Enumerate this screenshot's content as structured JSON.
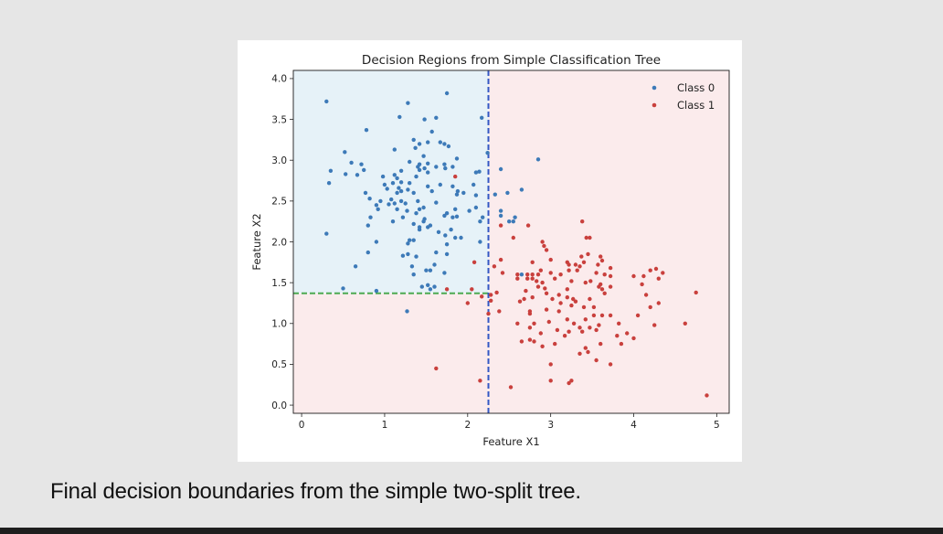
{
  "caption": "Final decision boundaries from the simple two-split tree.",
  "colors": {
    "class0": "#3d7ab8",
    "class1": "#c9403d",
    "region0": "#e6f2f8",
    "region1": "#fbebec",
    "split_x1": "#3358c4",
    "split_x2": "#4caa53"
  },
  "chart_data": {
    "type": "scatter",
    "title": "Decision Regions from Simple Classification Tree",
    "xlabel": "Feature X1",
    "ylabel": "Feature X2",
    "xlim": [
      -0.1,
      5.15
    ],
    "ylim": [
      -0.1,
      4.1
    ],
    "xticks": [
      "0",
      "1",
      "2",
      "3",
      "4",
      "5"
    ],
    "xtick_values": [
      0,
      1,
      2,
      3,
      4,
      5
    ],
    "yticks": [
      "0.0",
      "0.5",
      "1.0",
      "1.5",
      "2.0",
      "2.5",
      "3.0",
      "3.5",
      "4.0"
    ],
    "ytick_values": [
      0,
      0.5,
      1,
      1.5,
      2,
      2.5,
      3,
      3.5,
      4
    ],
    "grid": false,
    "legend_position": "top-right",
    "splits": [
      {
        "feature": "X1",
        "threshold": 2.25,
        "style": "dashed"
      },
      {
        "feature": "X2",
        "threshold": 1.37,
        "applies_when": "X1 <= 2.25",
        "style": "dashed"
      }
    ],
    "regions": [
      {
        "label": "Class 0",
        "x1": [
          -0.1,
          2.25
        ],
        "x2": [
          1.37,
          4.1
        ]
      },
      {
        "label": "Class 1",
        "x1": [
          -0.1,
          2.25
        ],
        "x2": [
          -0.1,
          1.37
        ]
      },
      {
        "label": "Class 1",
        "x1": [
          2.25,
          5.15
        ],
        "x2": [
          -0.1,
          4.1
        ]
      }
    ],
    "series": [
      {
        "name": "Class 0",
        "points": [
          [
            0.3,
            3.72
          ],
          [
            1.28,
            3.7
          ],
          [
            1.75,
            3.82
          ],
          [
            1.18,
            3.53
          ],
          [
            1.48,
            3.5
          ],
          [
            1.62,
            3.52
          ],
          [
            2.17,
            3.52
          ],
          [
            0.78,
            3.37
          ],
          [
            1.57,
            3.35
          ],
          [
            1.35,
            3.25
          ],
          [
            1.42,
            3.2
          ],
          [
            1.52,
            3.22
          ],
          [
            1.67,
            3.22
          ],
          [
            1.72,
            3.2
          ],
          [
            1.77,
            3.17
          ],
          [
            1.37,
            3.15
          ],
          [
            1.12,
            3.13
          ],
          [
            0.52,
            3.1
          ],
          [
            1.47,
            3.05
          ],
          [
            1.87,
            3.02
          ],
          [
            2.24,
            3.09
          ],
          [
            2.85,
            3.01
          ],
          [
            0.6,
            2.97
          ],
          [
            0.72,
            2.95
          ],
          [
            1.3,
            2.98
          ],
          [
            1.42,
            2.95
          ],
          [
            1.52,
            2.96
          ],
          [
            1.48,
            2.9
          ],
          [
            1.62,
            2.92
          ],
          [
            1.42,
            2.88
          ],
          [
            1.4,
            2.92
          ],
          [
            1.72,
            2.95
          ],
          [
            1.73,
            2.9
          ],
          [
            1.82,
            2.92
          ],
          [
            0.75,
            2.88
          ],
          [
            0.67,
            2.82
          ],
          [
            0.35,
            2.87
          ],
          [
            0.53,
            2.83
          ],
          [
            1.12,
            2.82
          ],
          [
            1.2,
            2.87
          ],
          [
            1.15,
            2.78
          ],
          [
            1.52,
            2.85
          ],
          [
            1.38,
            2.8
          ],
          [
            2.1,
            2.85
          ],
          [
            2.14,
            2.86
          ],
          [
            2.4,
            2.89
          ],
          [
            0.98,
            2.8
          ],
          [
            1.1,
            2.72
          ],
          [
            1.2,
            2.73
          ],
          [
            1.3,
            2.72
          ],
          [
            0.33,
            2.72
          ],
          [
            1.0,
            2.7
          ],
          [
            1.52,
            2.68
          ],
          [
            1.67,
            2.7
          ],
          [
            1.03,
            2.65
          ],
          [
            1.57,
            2.62
          ],
          [
            1.17,
            2.66
          ],
          [
            1.28,
            2.64
          ],
          [
            1.82,
            2.68
          ],
          [
            1.88,
            2.62
          ],
          [
            2.07,
            2.7
          ],
          [
            0.77,
            2.6
          ],
          [
            1.15,
            2.6
          ],
          [
            1.2,
            2.62
          ],
          [
            1.35,
            2.6
          ],
          [
            1.87,
            2.58
          ],
          [
            1.95,
            2.6
          ],
          [
            2.1,
            2.57
          ],
          [
            2.33,
            2.58
          ],
          [
            2.48,
            2.6
          ],
          [
            2.65,
            2.64
          ],
          [
            0.82,
            2.53
          ],
          [
            0.95,
            2.5
          ],
          [
            1.08,
            2.52
          ],
          [
            1.2,
            2.5
          ],
          [
            1.05,
            2.46
          ],
          [
            1.12,
            2.47
          ],
          [
            1.25,
            2.47
          ],
          [
            1.4,
            2.5
          ],
          [
            1.47,
            2.42
          ],
          [
            1.62,
            2.48
          ],
          [
            0.9,
            2.45
          ],
          [
            0.92,
            2.4
          ],
          [
            1.15,
            2.4
          ],
          [
            1.27,
            2.38
          ],
          [
            1.42,
            2.4
          ],
          [
            1.38,
            2.35
          ],
          [
            1.85,
            2.4
          ],
          [
            1.75,
            2.35
          ],
          [
            2.02,
            2.38
          ],
          [
            2.1,
            2.42
          ],
          [
            2.4,
            2.38
          ],
          [
            1.22,
            2.3
          ],
          [
            0.83,
            2.3
          ],
          [
            1.48,
            2.28
          ],
          [
            1.72,
            2.32
          ],
          [
            1.82,
            2.3
          ],
          [
            1.87,
            2.31
          ],
          [
            2.18,
            2.3
          ],
          [
            2.4,
            2.32
          ],
          [
            2.57,
            2.3
          ],
          [
            1.47,
            2.25
          ],
          [
            1.1,
            2.25
          ],
          [
            1.35,
            2.22
          ],
          [
            1.55,
            2.2
          ],
          [
            2.15,
            2.25
          ],
          [
            2.5,
            2.25
          ],
          [
            2.55,
            2.25
          ],
          [
            0.8,
            2.2
          ],
          [
            1.42,
            2.18
          ],
          [
            1.42,
            2.15
          ],
          [
            1.52,
            2.18
          ],
          [
            1.8,
            2.15
          ],
          [
            0.3,
            2.1
          ],
          [
            1.65,
            2.12
          ],
          [
            1.73,
            2.08
          ],
          [
            1.85,
            2.05
          ],
          [
            1.92,
            2.05
          ],
          [
            0.9,
            2.0
          ],
          [
            1.3,
            2.02
          ],
          [
            1.35,
            2.02
          ],
          [
            1.28,
            1.98
          ],
          [
            1.75,
            1.97
          ],
          [
            2.15,
            2.0
          ],
          [
            0.8,
            1.87
          ],
          [
            1.22,
            1.83
          ],
          [
            1.28,
            1.85
          ],
          [
            1.38,
            1.82
          ],
          [
            1.62,
            1.87
          ],
          [
            1.75,
            1.85
          ],
          [
            0.65,
            1.7
          ],
          [
            1.33,
            1.7
          ],
          [
            1.5,
            1.65
          ],
          [
            1.55,
            1.65
          ],
          [
            1.6,
            1.72
          ],
          [
            1.72,
            1.62
          ],
          [
            1.35,
            1.6
          ],
          [
            1.45,
            1.45
          ],
          [
            1.52,
            1.47
          ],
          [
            1.55,
            1.42
          ],
          [
            1.6,
            1.45
          ],
          [
            0.5,
            1.43
          ],
          [
            0.9,
            1.4
          ],
          [
            2.65,
            1.6
          ],
          [
            1.27,
            1.15
          ]
        ]
      },
      {
        "name": "Class 1",
        "points": [
          [
            1.85,
            2.8
          ],
          [
            2.4,
            2.2
          ],
          [
            2.73,
            2.2
          ],
          [
            2.55,
            2.05
          ],
          [
            2.9,
            2.0
          ],
          [
            2.92,
            1.95
          ],
          [
            2.95,
            1.9
          ],
          [
            3.38,
            2.25
          ],
          [
            3.43,
            2.05
          ],
          [
            3.47,
            2.05
          ],
          [
            3.37,
            1.82
          ],
          [
            3.45,
            1.85
          ],
          [
            3.6,
            1.82
          ],
          [
            2.78,
            1.75
          ],
          [
            3.0,
            1.78
          ],
          [
            3.2,
            1.75
          ],
          [
            3.22,
            1.72
          ],
          [
            3.3,
            1.72
          ],
          [
            3.4,
            1.75
          ],
          [
            3.57,
            1.72
          ],
          [
            3.62,
            1.77
          ],
          [
            3.72,
            1.68
          ],
          [
            4.2,
            1.65
          ],
          [
            4.27,
            1.67
          ],
          [
            4.35,
            1.62
          ],
          [
            2.4,
            1.78
          ],
          [
            2.32,
            1.7
          ],
          [
            2.08,
            1.75
          ],
          [
            2.42,
            1.62
          ],
          [
            2.6,
            1.6
          ],
          [
            2.72,
            1.6
          ],
          [
            2.78,
            1.6
          ],
          [
            2.85,
            1.6
          ],
          [
            2.88,
            1.65
          ],
          [
            3.0,
            1.62
          ],
          [
            3.12,
            1.6
          ],
          [
            3.22,
            1.65
          ],
          [
            3.32,
            1.65
          ],
          [
            3.35,
            1.7
          ],
          [
            3.55,
            1.62
          ],
          [
            3.65,
            1.6
          ],
          [
            3.72,
            1.58
          ],
          [
            4.0,
            1.58
          ],
          [
            4.12,
            1.58
          ],
          [
            4.3,
            1.55
          ],
          [
            4.1,
            1.48
          ],
          [
            2.6,
            1.55
          ],
          [
            2.72,
            1.55
          ],
          [
            2.78,
            1.55
          ],
          [
            2.83,
            1.52
          ],
          [
            2.9,
            1.5
          ],
          [
            3.05,
            1.55
          ],
          [
            3.25,
            1.52
          ],
          [
            3.42,
            1.5
          ],
          [
            3.48,
            1.52
          ],
          [
            3.58,
            1.45
          ],
          [
            3.6,
            1.48
          ],
          [
            3.72,
            1.45
          ],
          [
            4.75,
            1.38
          ],
          [
            2.85,
            1.45
          ],
          [
            2.93,
            1.43
          ],
          [
            3.2,
            1.42
          ],
          [
            3.62,
            1.42
          ],
          [
            2.7,
            1.4
          ],
          [
            2.95,
            1.37
          ],
          [
            3.1,
            1.35
          ],
          [
            3.65,
            1.37
          ],
          [
            4.15,
            1.35
          ],
          [
            1.75,
            1.42
          ],
          [
            2.05,
            1.42
          ],
          [
            2.17,
            1.33
          ],
          [
            2.28,
            1.35
          ],
          [
            2.35,
            1.38
          ],
          [
            2.28,
            1.28
          ],
          [
            2.68,
            1.3
          ],
          [
            2.78,
            1.32
          ],
          [
            3.02,
            1.3
          ],
          [
            3.2,
            1.32
          ],
          [
            3.27,
            1.3
          ],
          [
            3.3,
            1.27
          ],
          [
            3.47,
            1.3
          ],
          [
            2.63,
            1.27
          ],
          [
            3.12,
            1.25
          ],
          [
            3.25,
            1.22
          ],
          [
            3.4,
            1.2
          ],
          [
            3.52,
            1.2
          ],
          [
            4.3,
            1.25
          ],
          [
            4.2,
            1.2
          ],
          [
            2.0,
            1.25
          ],
          [
            2.95,
            1.17
          ],
          [
            3.1,
            1.15
          ],
          [
            2.38,
            1.15
          ],
          [
            2.25,
            1.12
          ],
          [
            2.75,
            1.15
          ],
          [
            2.75,
            1.12
          ],
          [
            3.52,
            1.1
          ],
          [
            3.62,
            1.1
          ],
          [
            3.72,
            1.1
          ],
          [
            3.2,
            1.05
          ],
          [
            3.42,
            1.05
          ],
          [
            4.05,
            1.1
          ],
          [
            2.6,
            1.0
          ],
          [
            2.8,
            1.0
          ],
          [
            2.98,
            1.02
          ],
          [
            3.28,
            1.0
          ],
          [
            3.58,
            0.98
          ],
          [
            3.82,
            1.0
          ],
          [
            4.25,
            0.98
          ],
          [
            4.62,
            1.0
          ],
          [
            3.35,
            0.95
          ],
          [
            3.47,
            0.95
          ],
          [
            2.75,
            0.95
          ],
          [
            3.08,
            0.92
          ],
          [
            3.22,
            0.9
          ],
          [
            3.38,
            0.9
          ],
          [
            3.55,
            0.92
          ],
          [
            2.88,
            0.88
          ],
          [
            3.17,
            0.85
          ],
          [
            3.92,
            0.88
          ],
          [
            3.8,
            0.85
          ],
          [
            2.65,
            0.78
          ],
          [
            2.75,
            0.8
          ],
          [
            2.8,
            0.78
          ],
          [
            3.05,
            0.75
          ],
          [
            3.6,
            0.75
          ],
          [
            3.85,
            0.75
          ],
          [
            4.0,
            0.82
          ],
          [
            2.9,
            0.72
          ],
          [
            3.42,
            0.7
          ],
          [
            3.45,
            0.65
          ],
          [
            3.35,
            0.63
          ],
          [
            3.55,
            0.55
          ],
          [
            3.72,
            0.5
          ],
          [
            3.0,
            0.5
          ],
          [
            1.62,
            0.45
          ],
          [
            2.15,
            0.3
          ],
          [
            3.0,
            0.3
          ],
          [
            3.25,
            0.3
          ],
          [
            3.22,
            0.27
          ],
          [
            2.52,
            0.22
          ],
          [
            4.88,
            0.12
          ]
        ]
      }
    ]
  }
}
